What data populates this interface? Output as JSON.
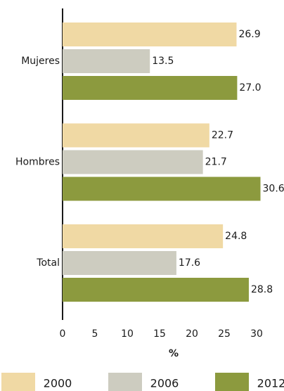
{
  "chart_data": {
    "type": "bar",
    "orientation": "horizontal",
    "categories": [
      "Mujeres",
      "Hombres",
      "Total"
    ],
    "series": [
      {
        "name": "2000",
        "color": "#f0d9a4",
        "values": [
          26.9,
          22.7,
          24.8
        ],
        "value_labels": [
          "26.9",
          "22.7",
          "24.8"
        ]
      },
      {
        "name": "2006",
        "color": "#cdccc0",
        "values": [
          13.5,
          21.7,
          17.6
        ],
        "value_labels": [
          "13.5",
          "21.7",
          "17.6"
        ]
      },
      {
        "name": "2012",
        "color": "#8c9a3e",
        "values": [
          27.0,
          30.6,
          28.8
        ],
        "value_labels": [
          "27.0",
          "30.6",
          "28.8"
        ]
      }
    ],
    "xlabel": "%",
    "xlim": [
      0,
      30
    ],
    "xticks": [
      0,
      5,
      10,
      15,
      20,
      25,
      30
    ],
    "grid": false,
    "legend": "bottom"
  }
}
